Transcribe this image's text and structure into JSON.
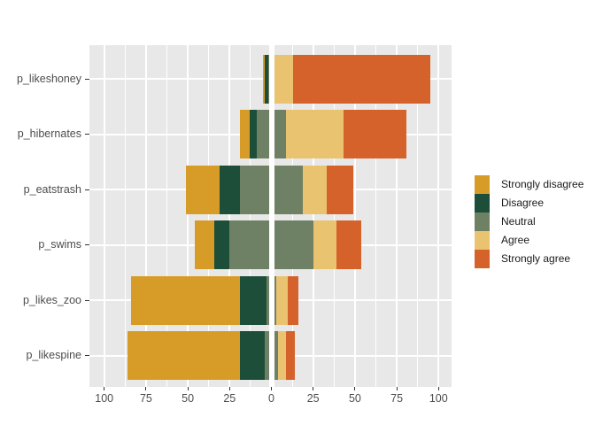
{
  "chart_data": {
    "type": "bar",
    "orientation": "horizontal",
    "stacking": "diverging-likert",
    "title": "",
    "xlabel": "",
    "ylabel": "",
    "categories": [
      "p_likeshoney",
      "p_hibernates",
      "p_eatstrash",
      "p_swims",
      "p_likes_zoo",
      "p_likespine"
    ],
    "series": [
      {
        "name": "Strongly disagree",
        "color": "#D69C27",
        "values": [
          1,
          6,
          20,
          12,
          65,
          67
        ]
      },
      {
        "name": "Disagree",
        "color": "#1D4E39",
        "values": [
          2,
          4,
          12,
          9,
          16,
          15
        ]
      },
      {
        "name": "Neutral",
        "color": "#6F8164",
        "values": [
          4,
          18,
          38,
          50,
          6,
          8
        ]
      },
      {
        "name": "Agree",
        "color": "#E9C36F",
        "values": [
          11,
          34,
          14,
          14,
          7,
          5
        ]
      },
      {
        "name": "Strongly agree",
        "color": "#D5622A",
        "values": [
          82,
          38,
          16,
          15,
          6,
          5
        ]
      }
    ],
    "neutral_centered_on_zero": true,
    "x_axis": {
      "tick_labels": [
        "100",
        "75",
        "50",
        "25",
        "0",
        "25",
        "50",
        "75",
        "100"
      ],
      "tick_values": [
        -100,
        -75,
        -50,
        -25,
        0,
        25,
        50,
        75,
        100
      ],
      "minor_tick_values": [
        -87.5,
        -62.5,
        -37.5,
        -12.5,
        12.5,
        37.5,
        62.5,
        87.5
      ],
      "range": [
        -108,
        108
      ]
    },
    "zero_line_color": "#FFFFFF",
    "panel_background": "#E8E8E8",
    "gridline_color": "#FFFFFF",
    "axis_text_color": "#4D4D4D",
    "grid": true,
    "legend_position": "right"
  }
}
